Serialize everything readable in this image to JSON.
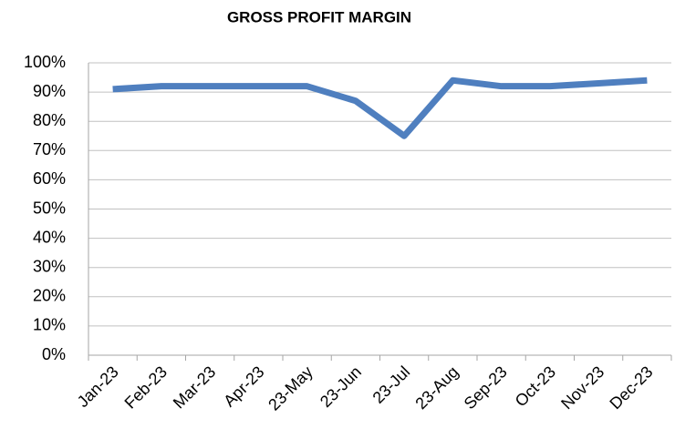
{
  "chart_data": {
    "type": "line",
    "title": "GROSS PROFIT MARGIN",
    "categories": [
      "Jan-23",
      "Feb-23",
      "Mar-23",
      "Apr-23",
      "23-May",
      "23-Jun",
      "23-Jul",
      "23-Aug",
      "Sep-23",
      "Oct-23",
      "Nov-23",
      "Dec-23"
    ],
    "series": [
      {
        "name": "Gross Profit Margin",
        "color": "#4f7fbf",
        "values": [
          91,
          92,
          92,
          92,
          92,
          87,
          75,
          94,
          92,
          92,
          93,
          94
        ]
      }
    ],
    "ylim": [
      0,
      100
    ],
    "yticks": [
      {
        "value": 0,
        "label": "0%"
      },
      {
        "value": 10,
        "label": "10%"
      },
      {
        "value": 20,
        "label": "20%"
      },
      {
        "value": 30,
        "label": "30%"
      },
      {
        "value": 40,
        "label": "40%"
      },
      {
        "value": 50,
        "label": "50%"
      },
      {
        "value": 60,
        "label": "60%"
      },
      {
        "value": 70,
        "label": "70%"
      },
      {
        "value": 80,
        "label": "80%"
      },
      {
        "value": 90,
        "label": "90%"
      },
      {
        "value": 100,
        "label": "100%"
      }
    ],
    "grid": true
  }
}
